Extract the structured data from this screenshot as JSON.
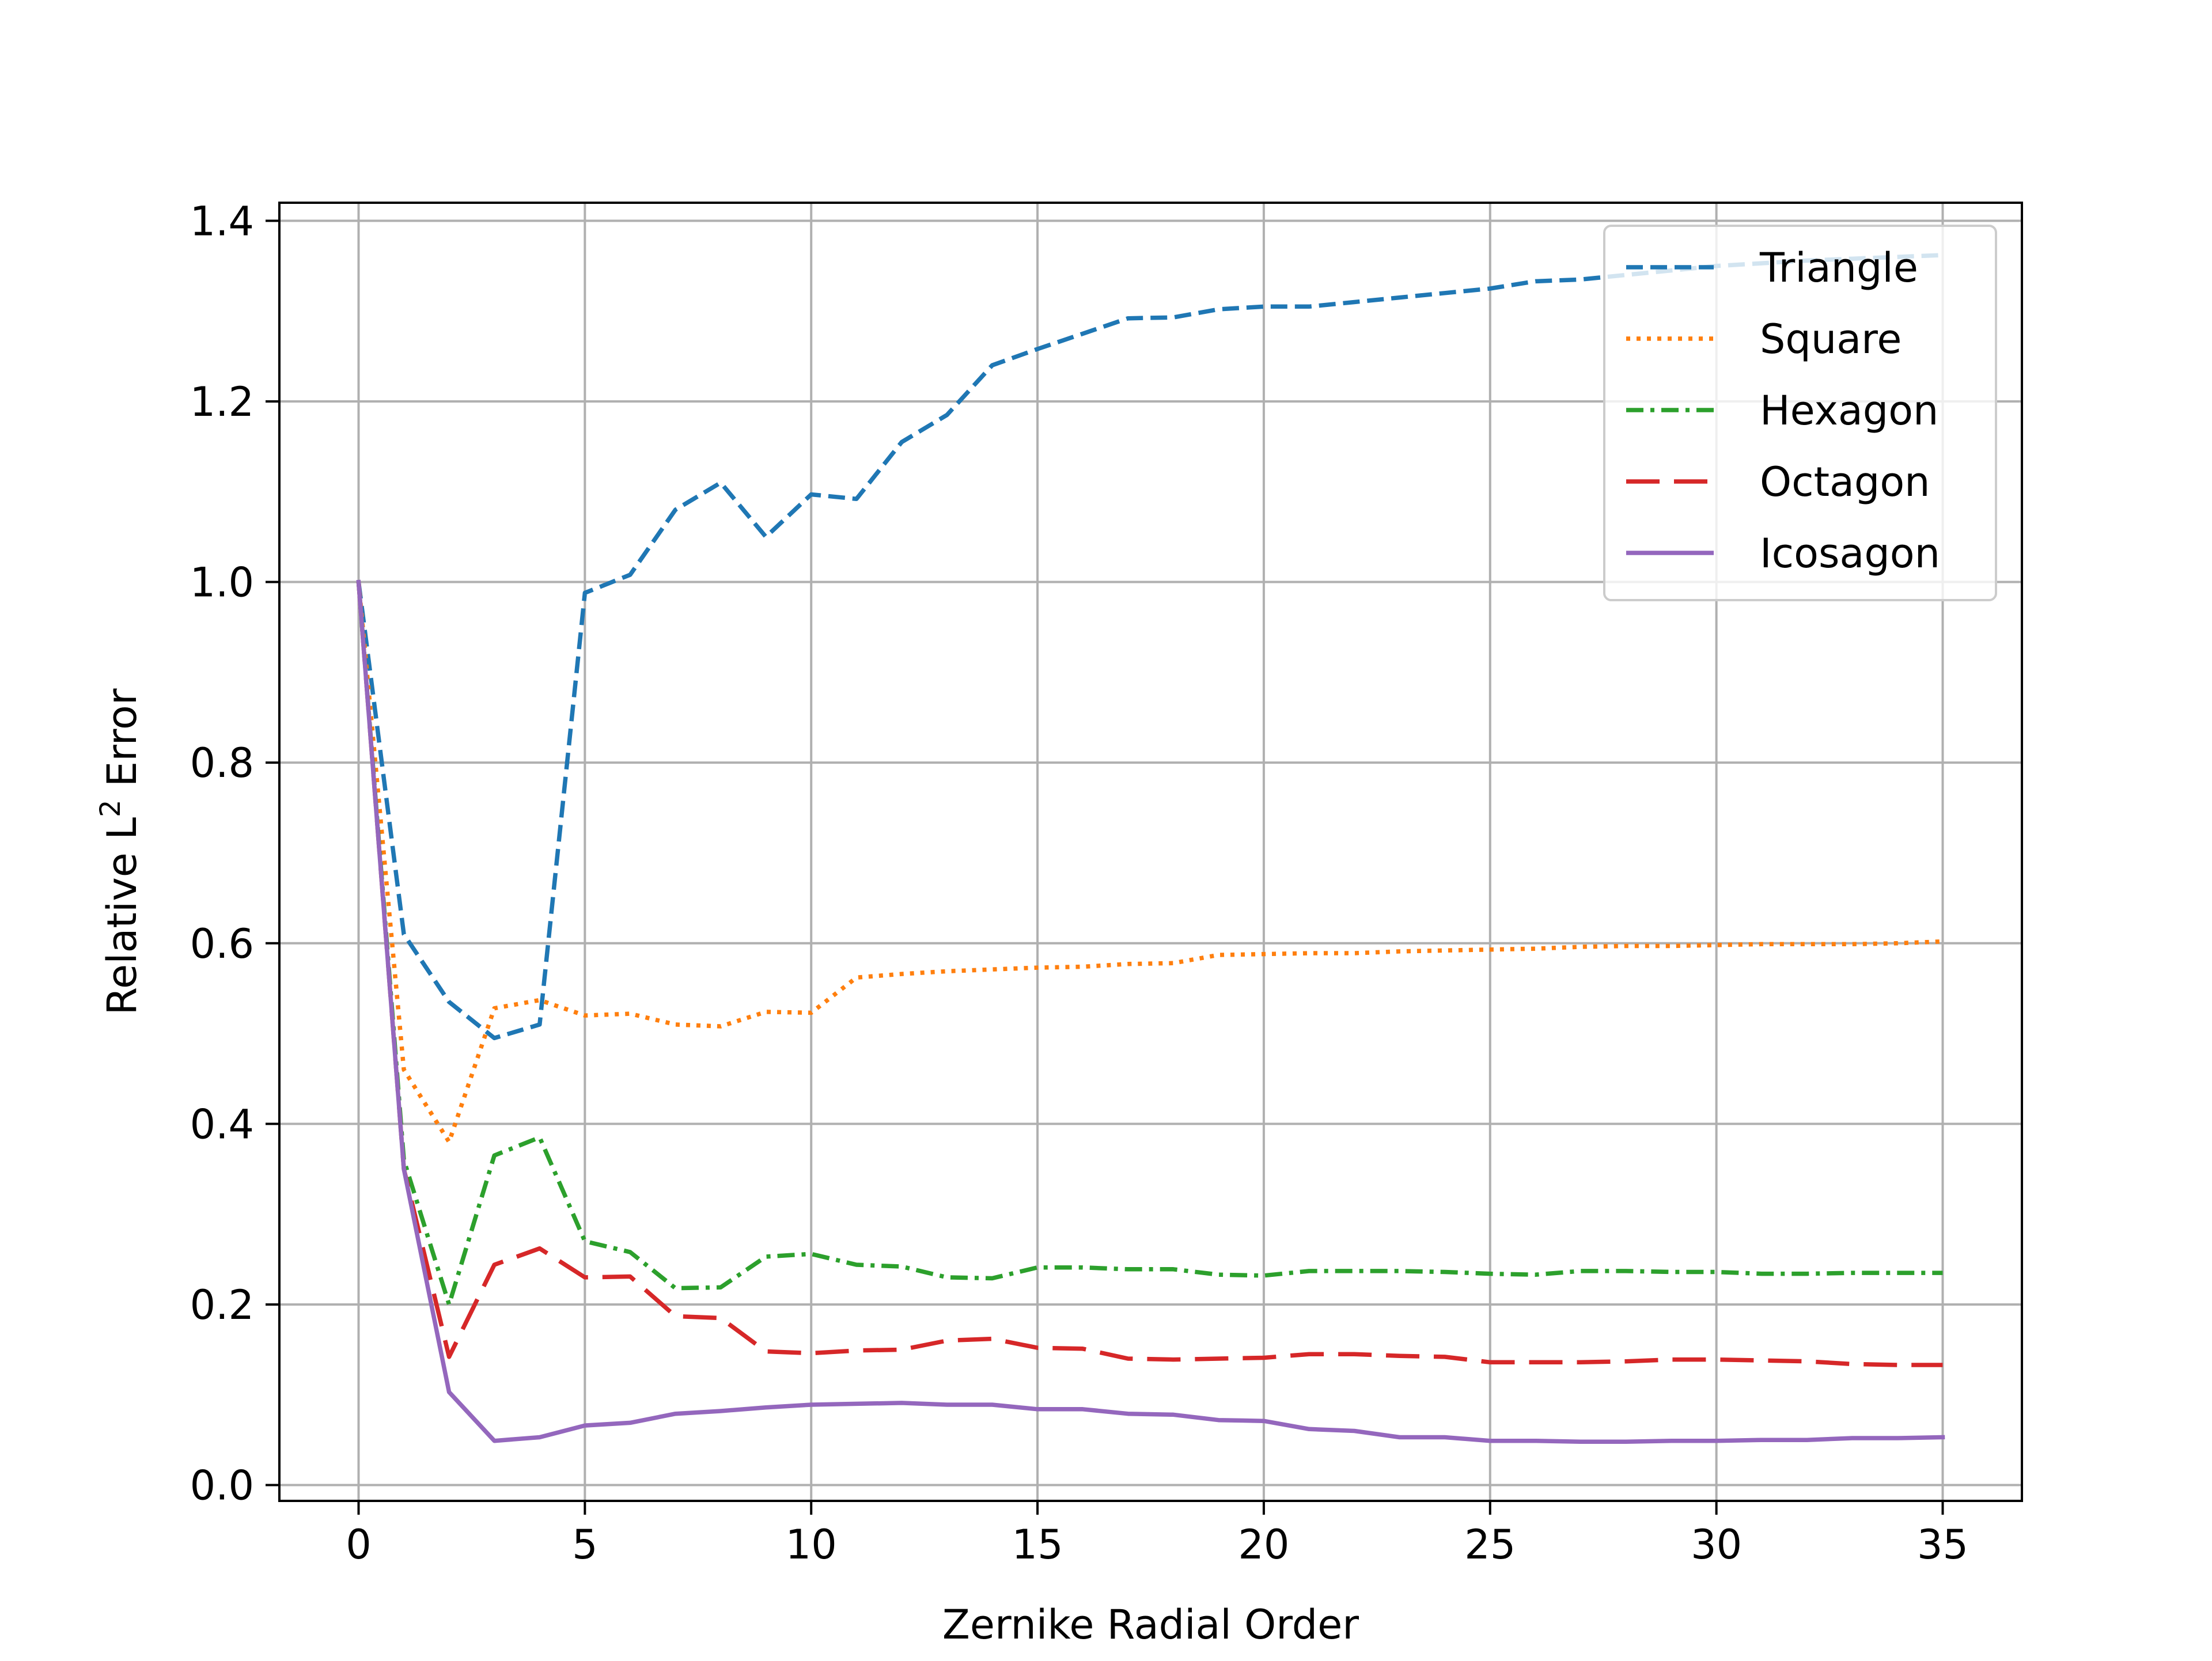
{
  "chart_data": {
    "type": "line",
    "title": "",
    "xlabel": "Zernike Radial Order",
    "ylabel_main": "Relative L",
    "ylabel_sup": "2",
    "ylabel_tail": " Error",
    "xlim": [
      -1.75,
      36.75
    ],
    "ylim": [
      -0.0175,
      1.42
    ],
    "x_ticks": [
      0,
      5,
      10,
      15,
      20,
      25,
      30,
      35
    ],
    "x_tick_labels": [
      "0",
      "5",
      "10",
      "15",
      "20",
      "25",
      "30",
      "35"
    ],
    "y_ticks": [
      0.0,
      0.2,
      0.4,
      0.6,
      0.8,
      1.0,
      1.2,
      1.4
    ],
    "y_tick_labels": [
      "0.0",
      "0.2",
      "0.4",
      "0.6",
      "0.8",
      "1.0",
      "1.2",
      "1.4"
    ],
    "grid": true,
    "legend_position": "top-right",
    "x": [
      0,
      1,
      2,
      3,
      4,
      5,
      6,
      7,
      8,
      9,
      10,
      11,
      12,
      13,
      14,
      15,
      16,
      17,
      18,
      19,
      20,
      21,
      22,
      23,
      24,
      25,
      26,
      27,
      28,
      29,
      30,
      31,
      32,
      33,
      34,
      35
    ],
    "series": [
      {
        "name": "Triangle",
        "color": "#1f77b4",
        "dash": "dashed",
        "values": [
          1.0,
          0.61,
          0.535,
          0.495,
          0.51,
          0.988,
          1.008,
          1.08,
          1.11,
          1.05,
          1.097,
          1.092,
          1.155,
          1.185,
          1.24,
          1.258,
          1.275,
          1.292,
          1.293,
          1.302,
          1.305,
          1.305,
          1.31,
          1.315,
          1.32,
          1.325,
          1.333,
          1.335,
          1.34,
          1.345,
          1.35,
          1.353,
          1.356,
          1.358,
          1.36,
          1.362
        ]
      },
      {
        "name": "Square",
        "color": "#ff7f0e",
        "dash": "dotted",
        "values": [
          1.0,
          0.46,
          0.38,
          0.528,
          0.537,
          0.52,
          0.522,
          0.51,
          0.508,
          0.524,
          0.523,
          0.562,
          0.566,
          0.569,
          0.571,
          0.573,
          0.574,
          0.577,
          0.578,
          0.587,
          0.588,
          0.589,
          0.589,
          0.591,
          0.592,
          0.593,
          0.594,
          0.596,
          0.597,
          0.597,
          0.598,
          0.599,
          0.599,
          0.599,
          0.6,
          0.602
        ]
      },
      {
        "name": "Hexagon",
        "color": "#2ca02c",
        "dash": "dashdot",
        "values": [
          1.0,
          0.36,
          0.2,
          0.365,
          0.385,
          0.27,
          0.258,
          0.218,
          0.219,
          0.253,
          0.256,
          0.244,
          0.242,
          0.23,
          0.229,
          0.241,
          0.241,
          0.239,
          0.239,
          0.233,
          0.232,
          0.237,
          0.237,
          0.237,
          0.236,
          0.234,
          0.233,
          0.237,
          0.237,
          0.236,
          0.236,
          0.234,
          0.234,
          0.235,
          0.235,
          0.235
        ]
      },
      {
        "name": "Octagon",
        "color": "#d62728",
        "dash": "longdash",
        "values": [
          1.0,
          0.35,
          0.142,
          0.244,
          0.262,
          0.23,
          0.231,
          0.187,
          0.185,
          0.148,
          0.146,
          0.149,
          0.15,
          0.16,
          0.162,
          0.152,
          0.151,
          0.14,
          0.139,
          0.14,
          0.141,
          0.145,
          0.145,
          0.143,
          0.142,
          0.136,
          0.136,
          0.136,
          0.137,
          0.139,
          0.139,
          0.138,
          0.137,
          0.134,
          0.133,
          0.133
        ]
      },
      {
        "name": "Icosagon",
        "color": "#9467bd",
        "dash": "solid",
        "values": [
          1.0,
          0.35,
          0.103,
          0.049,
          0.053,
          0.066,
          0.069,
          0.079,
          0.082,
          0.086,
          0.089,
          0.09,
          0.091,
          0.089,
          0.089,
          0.084,
          0.084,
          0.079,
          0.078,
          0.072,
          0.071,
          0.062,
          0.06,
          0.053,
          0.053,
          0.049,
          0.049,
          0.048,
          0.048,
          0.049,
          0.049,
          0.05,
          0.05,
          0.052,
          0.052,
          0.053
        ]
      }
    ]
  }
}
